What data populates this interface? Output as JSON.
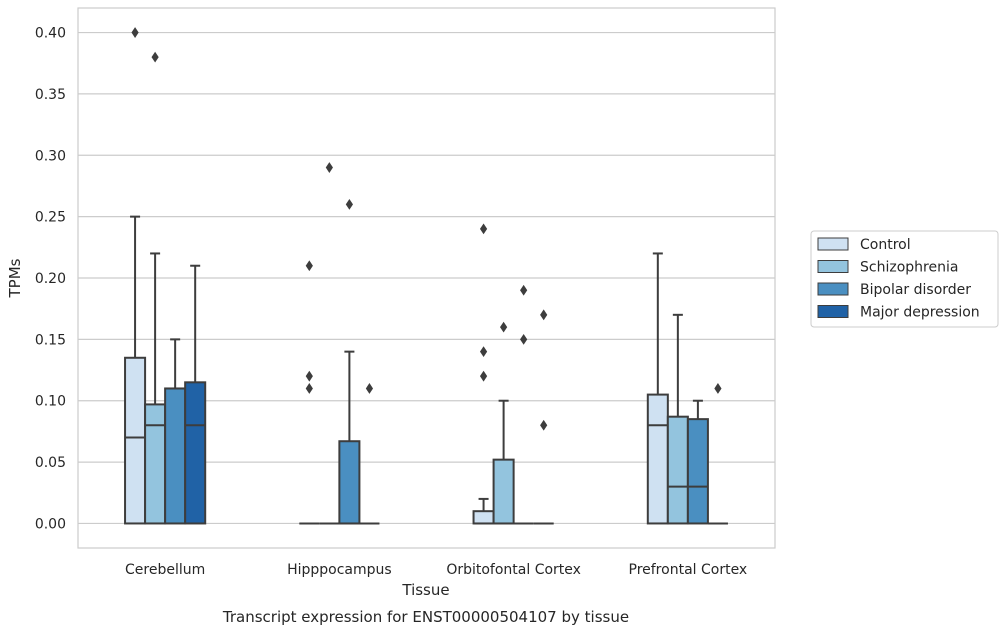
{
  "chart_data": {
    "type": "box",
    "title": "",
    "caption": "Transcript expression for ENST00000504107 by tissue",
    "xlabel": "Tissue",
    "ylabel": "TPMs",
    "ylim": [
      -0.02,
      0.42
    ],
    "yticks": [
      0.0,
      0.05,
      0.1,
      0.15,
      0.2,
      0.25,
      0.3,
      0.35,
      0.4
    ],
    "ytick_labels": [
      "0.00",
      "0.05",
      "0.10",
      "0.15",
      "0.20",
      "0.25",
      "0.30",
      "0.35",
      "0.40"
    ],
    "grid": "horizontal",
    "legend_position": "right",
    "categories": [
      "Cerebellum",
      "Hipppocampus",
      "Orbitofontal Cortex",
      "Prefrontal Cortex"
    ],
    "series": [
      {
        "name": "Control",
        "color": "#cfe1f2",
        "boxes": [
          {
            "whisker_low": 0.0,
            "q1": 0.0,
            "median": 0.07,
            "q3": 0.135,
            "whisker_high": 0.25,
            "outliers": [
              0.4
            ]
          },
          {
            "whisker_low": 0.0,
            "q1": 0.0,
            "median": 0.0,
            "q3": 0.0,
            "whisker_high": 0.0,
            "outliers": [
              0.11,
              0.12,
              0.21
            ]
          },
          {
            "whisker_low": 0.0,
            "q1": 0.0,
            "median": 0.0,
            "q3": 0.01,
            "whisker_high": 0.02,
            "outliers": [
              0.12,
              0.14,
              0.24
            ]
          },
          {
            "whisker_low": 0.0,
            "q1": 0.0,
            "median": 0.08,
            "q3": 0.105,
            "whisker_high": 0.22,
            "outliers": []
          }
        ]
      },
      {
        "name": "Schizophrenia",
        "color": "#93c4de",
        "boxes": [
          {
            "whisker_low": 0.0,
            "q1": 0.0,
            "median": 0.08,
            "q3": 0.097,
            "whisker_high": 0.22,
            "outliers": [
              0.38
            ]
          },
          {
            "whisker_low": 0.0,
            "q1": 0.0,
            "median": 0.0,
            "q3": 0.0,
            "whisker_high": 0.0,
            "outliers": [
              0.29
            ]
          },
          {
            "whisker_low": 0.0,
            "q1": 0.0,
            "median": 0.0,
            "q3": 0.052,
            "whisker_high": 0.1,
            "outliers": [
              0.16
            ]
          },
          {
            "whisker_low": 0.0,
            "q1": 0.0,
            "median": 0.03,
            "q3": 0.087,
            "whisker_high": 0.17,
            "outliers": []
          }
        ]
      },
      {
        "name": "Bipolar disorder",
        "color": "#4a8fc1",
        "boxes": [
          {
            "whisker_low": 0.0,
            "q1": 0.0,
            "median": 0.11,
            "q3": 0.11,
            "whisker_high": 0.15,
            "outliers": []
          },
          {
            "whisker_low": 0.0,
            "q1": 0.0,
            "median": 0.0,
            "q3": 0.067,
            "whisker_high": 0.14,
            "outliers": [
              0.26
            ]
          },
          {
            "whisker_low": 0.0,
            "q1": 0.0,
            "median": 0.0,
            "q3": 0.0,
            "whisker_high": 0.0,
            "outliers": [
              0.15,
              0.19
            ]
          },
          {
            "whisker_low": 0.0,
            "q1": 0.0,
            "median": 0.03,
            "q3": 0.085,
            "whisker_high": 0.1,
            "outliers": []
          }
        ]
      },
      {
        "name": "Major depression",
        "color": "#2062a6",
        "boxes": [
          {
            "whisker_low": 0.0,
            "q1": 0.0,
            "median": 0.08,
            "q3": 0.115,
            "whisker_high": 0.21,
            "outliers": []
          },
          {
            "whisker_low": 0.0,
            "q1": 0.0,
            "median": 0.0,
            "q3": 0.0,
            "whisker_high": 0.0,
            "outliers": [
              0.11
            ]
          },
          {
            "whisker_low": 0.0,
            "q1": 0.0,
            "median": 0.0,
            "q3": 0.0,
            "whisker_high": 0.0,
            "outliers": [
              0.08,
              0.17
            ]
          },
          {
            "whisker_low": 0.0,
            "q1": 0.0,
            "median": 0.0,
            "q3": 0.0,
            "whisker_high": 0.0,
            "outliers": [
              0.11
            ]
          }
        ]
      }
    ]
  }
}
